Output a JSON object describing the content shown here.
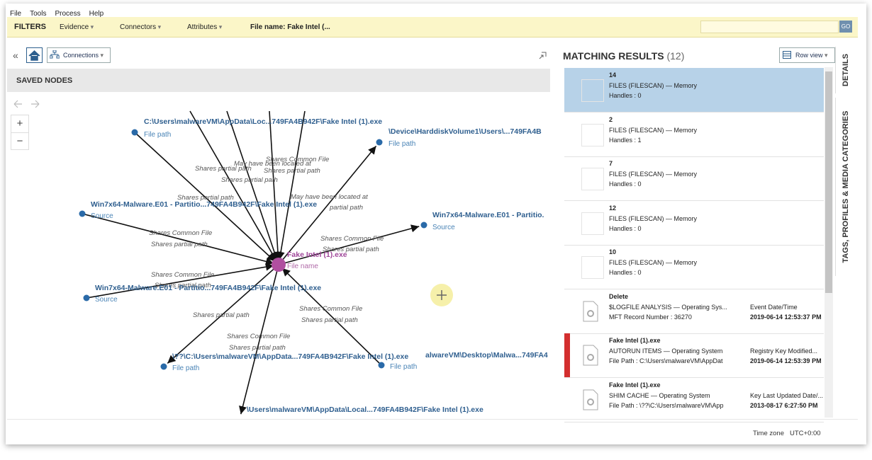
{
  "menu": [
    "File",
    "Tools",
    "Process",
    "Help"
  ],
  "filters": {
    "title": "FILTERS",
    "items": [
      "Evidence",
      "Connectors",
      "Attributes"
    ],
    "file_name": "File name: Fake Intel (...",
    "go": "GO"
  },
  "toolbar": {
    "collapse": "«",
    "connections": "Connections"
  },
  "saved_nodes": {
    "title": "SAVED NODES",
    "zoom_in": "+",
    "zoom_out": "−"
  },
  "graph": {
    "nodes": [
      {
        "label": "Fake Intel (1).exe",
        "type": "File name"
      },
      {
        "label": "C:\\Users\\malwareVM\\AppData\\Loc...749FA4B942F\\Fake Intel (1).exe",
        "type": "File path"
      },
      {
        "label": "\\Device\\HarddiskVolume1\\Users\\...749FA4B",
        "type": "File path"
      },
      {
        "label": "Win7x64-Malware.E01 - Partitio...749FA4B942F\\Fake Intel (1).exe",
        "type": "Source"
      },
      {
        "label": "Win7x64-Malware.E01 - Partitio.",
        "type": "Source"
      },
      {
        "label": "Win7x64-Malware.E01 - Partitio...749FA4B942F\\Fake Intel (1).exe",
        "type": "Source"
      },
      {
        "label": "\\??\\C:\\Users\\malwareVM\\AppData...749FA4B942F\\Fake Intel (1).exe",
        "type": "File path"
      },
      {
        "label": "alwareVM\\Desktop\\Malwa...749FA4",
        "type": "File path"
      },
      {
        "label": "\\Users\\malwareVM\\AppData\\Local...749FA4B942F\\Fake Intel (1).exe"
      }
    ],
    "edge_labels": [
      "Shares partial path",
      "Shares Common File",
      "May have been located at",
      "Shares partial path",
      "Shares partial path",
      "Shares partial path",
      "May have been located at",
      "partial path",
      "Shares Common File",
      "Shares partial path",
      "Shares Common File",
      "Shares partial path",
      "Shares Common File",
      "Shares partial path",
      "Shares Common File",
      "Shares partial path",
      "Shares partial path",
      "Shares Common File",
      "Shares partial path"
    ]
  },
  "results": {
    "title": "MATCHING RESULTS",
    "count": "(12)",
    "view": "Row view",
    "rows": [
      {
        "title": "14",
        "line1": "FILES (FILESCAN)  —  Memory",
        "line2": "Handles :  0"
      },
      {
        "title": "2",
        "line1": "FILES (FILESCAN)  —  Memory",
        "line2": "Handles :  1"
      },
      {
        "title": "7",
        "line1": "FILES (FILESCAN)  —  Memory",
        "line2": "Handles :  0"
      },
      {
        "title": "12",
        "line1": "FILES (FILESCAN)  —  Memory",
        "line2": "Handles :  0"
      },
      {
        "title": "10",
        "line1": "FILES (FILESCAN)  —  Memory",
        "line2": "Handles :  0"
      },
      {
        "title": "Delete",
        "line1": "$LOGFILE ANALYSIS  —  Operating Sys...",
        "line2": "MFT Record Number :  36270",
        "right_label": "Event Date/Time",
        "right_value": "2019-06-14 12:53:37 PM"
      },
      {
        "title": "Fake Intel (1).exe",
        "line1": "AUTORUN ITEMS  —  Operating System",
        "line2": "File Path :  C:\\Users\\malwareVM\\AppDat",
        "right_label": "Registry Key Modified...",
        "right_value": "2019-06-14 12:53:39 PM"
      },
      {
        "title": "Fake Intel (1).exe",
        "line1": "SHIM CACHE  —  Operating System",
        "line2": "File Path :  \\??\\C:\\Users\\malwareVM\\App",
        "right_label": "Key Last Updated Date/...",
        "right_value": "2013-08-17 6:27:50 PM"
      }
    ]
  },
  "side_tabs": [
    "DETAILS",
    "TAGS, PROFILES & MEDIA CATEGORIES"
  ],
  "footer": {
    "label": "Time zone",
    "value": "UTC+0:00"
  }
}
